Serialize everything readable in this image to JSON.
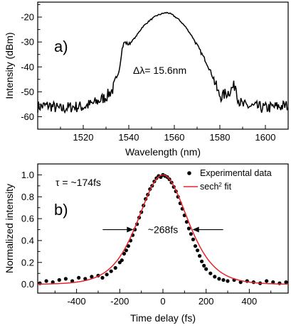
{
  "chart_data": [
    {
      "id": "a",
      "type": "line",
      "panel_label": "a)",
      "title": "",
      "xlabel": "Wavelength (nm)",
      "ylabel": "Intensity (dBm)",
      "xlim": [
        1500,
        1610
      ],
      "ylim": [
        -65,
        -14
      ],
      "xticks": [
        1520,
        1540,
        1560,
        1580,
        1600
      ],
      "yticks": [
        -60,
        -50,
        -40,
        -30,
        -20
      ],
      "grid": false,
      "annotation": "Δλ= 15.6nm",
      "series": [
        {
          "color": "#000000",
          "x": [
            1500,
            1505,
            1510,
            1515,
            1520,
            1525,
            1530,
            1533,
            1535,
            1536,
            1537,
            1538,
            1540,
            1543,
            1546,
            1549,
            1552,
            1555,
            1557,
            1559,
            1562,
            1565,
            1568,
            1571,
            1574,
            1576,
            1578,
            1579,
            1580,
            1581,
            1582,
            1584,
            1586,
            1587,
            1588,
            1590,
            1595,
            1600,
            1605,
            1610
          ],
          "y": [
            -56,
            -55.5,
            -57,
            -56,
            -56,
            -54.5,
            -52,
            -49,
            -44,
            -40,
            -33,
            -30,
            -31,
            -28,
            -24,
            -21.5,
            -19.5,
            -18.5,
            -18.2,
            -19,
            -21,
            -24,
            -28,
            -33,
            -38,
            -42,
            -46.5,
            -50,
            -51.5,
            -52,
            -51,
            -50,
            -48,
            -47,
            -53,
            -55.5,
            -56,
            -56.5,
            -56,
            -55.5
          ]
        }
      ]
    },
    {
      "id": "b",
      "type": "scatter",
      "panel_label": "b)",
      "title": "",
      "xlabel": "Time delay (fs)",
      "ylabel": "Normalized intensity",
      "xlim": [
        -580,
        580
      ],
      "ylim": [
        -0.08,
        1.1
      ],
      "xticks": [
        -400,
        -200,
        0,
        200,
        400
      ],
      "yticks": [
        0.0,
        0.2,
        0.4,
        0.6,
        0.8,
        1.0
      ],
      "grid": false,
      "annotations": {
        "tau": "τ = ~174fs",
        "fwhm": "~268fs"
      },
      "legend_position": "top-right",
      "fwhm_fs": 268,
      "series": [
        {
          "name": "Experimental data",
          "marker": "dot",
          "color": "#000000",
          "x": [
            -570,
            -540,
            -510,
            -480,
            -450,
            -420,
            -390,
            -360,
            -330,
            -300,
            -280,
            -260,
            -240,
            -220,
            -200,
            -190,
            -180,
            -170,
            -160,
            -150,
            -140,
            -130,
            -120,
            -110,
            -100,
            -90,
            -80,
            -70,
            -60,
            -50,
            -40,
            -30,
            -20,
            -10,
            0,
            10,
            20,
            30,
            40,
            50,
            60,
            70,
            80,
            90,
            100,
            110,
            120,
            130,
            140,
            150,
            160,
            170,
            180,
            190,
            200,
            220,
            240,
            260,
            280,
            300,
            330,
            360,
            390,
            420,
            450,
            480,
            510,
            540,
            570
          ],
          "y": [
            0.01,
            0.03,
            0.02,
            0.04,
            0.05,
            0.03,
            0.06,
            0.05,
            0.07,
            0.08,
            0.06,
            0.09,
            0.12,
            0.15,
            0.2,
            0.22,
            0.28,
            0.31,
            0.35,
            0.4,
            0.45,
            0.5,
            0.55,
            0.61,
            0.66,
            0.72,
            0.78,
            0.82,
            0.87,
            0.9,
            0.94,
            0.97,
            0.99,
            0.98,
            1.0,
            0.99,
            0.98,
            0.96,
            0.93,
            0.89,
            0.85,
            0.8,
            0.74,
            0.69,
            0.63,
            0.57,
            0.51,
            0.46,
            0.41,
            0.35,
            0.31,
            0.26,
            0.21,
            0.17,
            0.14,
            0.1,
            0.07,
            0.05,
            0.04,
            0.03,
            0.04,
            0.02,
            0.03,
            0.02,
            0.01,
            0.03,
            0.02,
            0.01,
            0.02
          ]
        },
        {
          "name": "sech",
          "name_superscript": "2",
          "name_suffix": " fit",
          "marker": "line",
          "color": "#e8242a",
          "function": "sech2"
        }
      ]
    }
  ]
}
